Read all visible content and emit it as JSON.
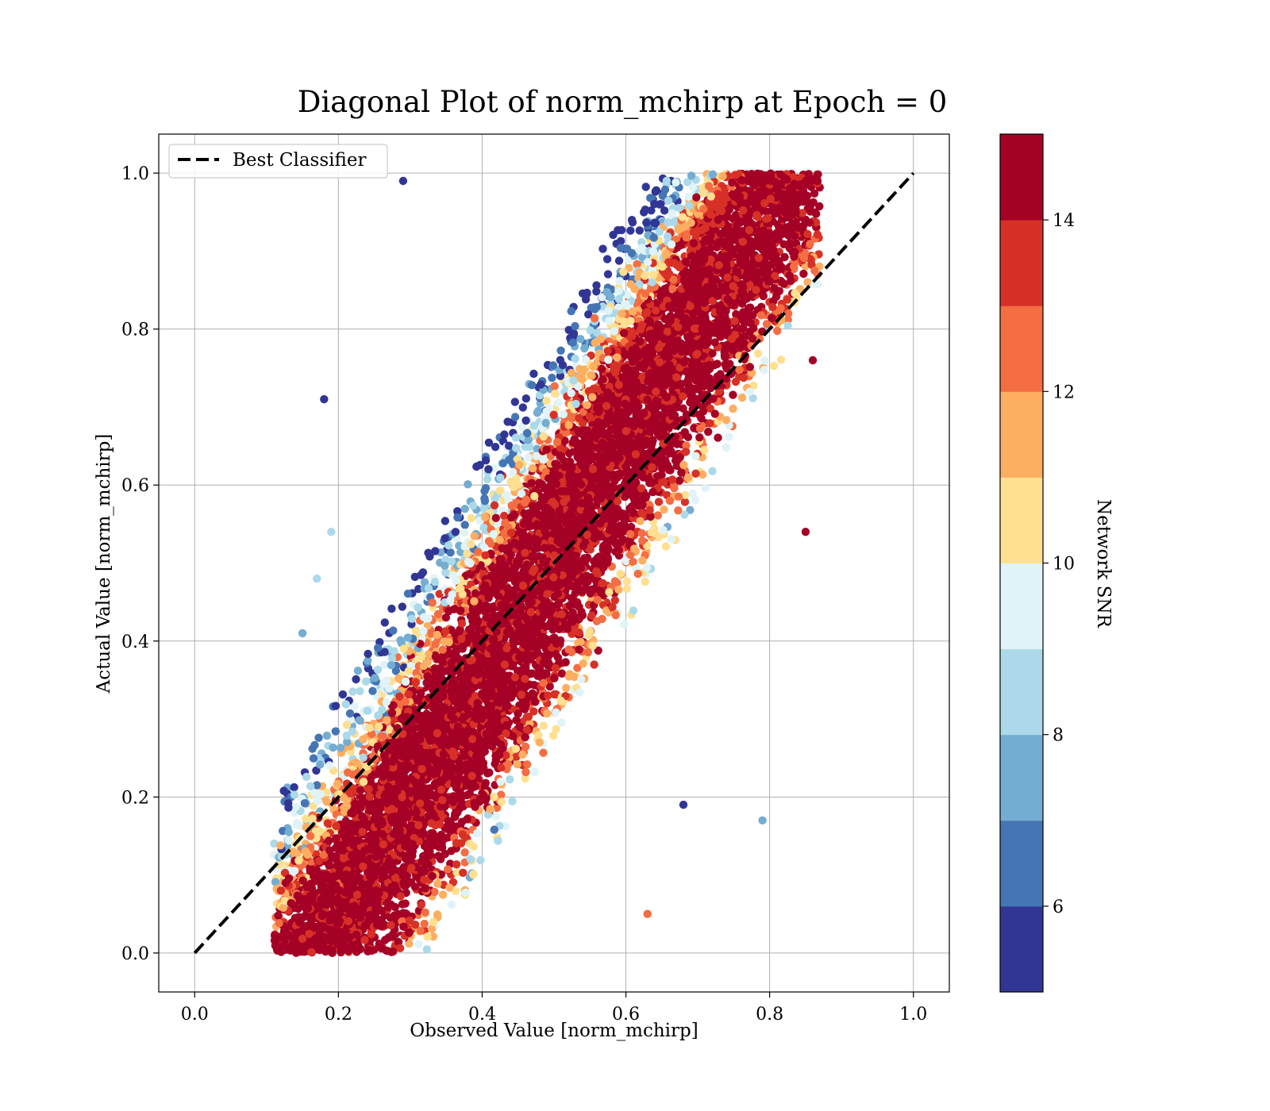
{
  "chart_data": {
    "type": "scatter",
    "title": "Diagonal Plot of norm_mchirp at Epoch = 0",
    "xlabel": "Observed Value [norm_mchirp]",
    "ylabel": "Actual Value [norm_mchirp]",
    "xlim": [
      -0.05,
      1.05
    ],
    "ylim": [
      -0.05,
      1.05
    ],
    "x_ticks": [
      "0.0",
      "0.2",
      "0.4",
      "0.6",
      "0.8",
      "1.0"
    ],
    "y_ticks": [
      "0.0",
      "0.2",
      "0.4",
      "0.6",
      "0.8",
      "1.0"
    ],
    "grid": true,
    "legend": {
      "position": "upper-left",
      "entries": [
        "Best Classifier"
      ]
    },
    "reference_line": {
      "name": "Best Classifier",
      "style": "dashed",
      "color": "#000000",
      "x": [
        0.0,
        1.0
      ],
      "y": [
        0.0,
        1.0
      ]
    },
    "colorbar": {
      "label": "Network SNR",
      "range": [
        5,
        15
      ],
      "ticks": [
        "6",
        "8",
        "10",
        "12",
        "14"
      ],
      "tick_values": [
        6,
        8,
        10,
        12,
        14
      ],
      "levels": [
        5,
        6,
        7,
        8,
        9,
        10,
        11,
        12,
        13,
        14,
        15
      ],
      "colors": [
        "#313695",
        "#4575b4",
        "#74add1",
        "#abd9e9",
        "#e0f3f8",
        "#fee090",
        "#fdae61",
        "#f46d43",
        "#d73027",
        "#a50026"
      ]
    },
    "point_cloud": {
      "description_of_distribution": "points scattered around y=x band; high SNR near diagonal, low SNR points above diagonal at larger actual values",
      "x_range": [
        0.11,
        0.87
      ],
      "y_range": [
        0.0,
        1.0
      ]
    },
    "sample_points": [
      {
        "x": 0.18,
        "y": 0.71,
        "snr": 5.2
      },
      {
        "x": 0.19,
        "y": 0.54,
        "snr": 8.5
      },
      {
        "x": 0.17,
        "y": 0.48,
        "snr": 8.8
      },
      {
        "x": 0.15,
        "y": 0.41,
        "snr": 7.5
      },
      {
        "x": 0.68,
        "y": 0.19,
        "snr": 5.5
      },
      {
        "x": 0.79,
        "y": 0.17,
        "snr": 7.6
      },
      {
        "x": 0.86,
        "y": 0.76,
        "snr": 14.8
      },
      {
        "x": 0.85,
        "y": 0.54,
        "snr": 14.6
      },
      {
        "x": 0.63,
        "y": 0.05,
        "snr": 12.5
      },
      {
        "x": 0.12,
        "y": 0.08,
        "snr": 13.2
      },
      {
        "x": 0.29,
        "y": 0.99,
        "snr": 5.3
      },
      {
        "x": 0.77,
        "y": 0.99,
        "snr": 14.8
      }
    ]
  }
}
